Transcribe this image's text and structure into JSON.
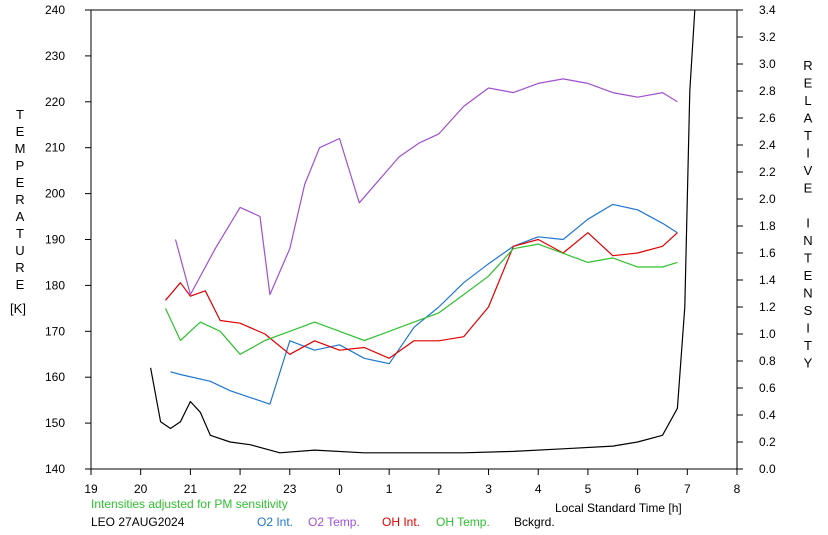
{
  "chart_data": {
    "type": "line",
    "left_axis": {
      "label": "TEMPERATURE",
      "unit": "[K]",
      "ylim": [
        140,
        240
      ],
      "ticks": [
        "140",
        "150",
        "160",
        "170",
        "180",
        "190",
        "200",
        "210",
        "220",
        "230",
        "240"
      ]
    },
    "right_axis": {
      "label": "RELATIVE INTENSITY",
      "ylim": [
        0.0,
        3.4
      ],
      "ticks": [
        "0.0",
        "0.2",
        "0.4",
        "0.6",
        "0.8",
        "1.0",
        "1.2",
        "1.4",
        "1.6",
        "1.8",
        "2.0",
        "2.2",
        "2.4",
        "2.6",
        "2.8",
        "3.0",
        "3.2",
        "3.4"
      ]
    },
    "x_axis": {
      "label": "Local Standard Time [h]",
      "xlim": [
        19,
        32
      ],
      "ticks": [
        "19",
        "20",
        "21",
        "22",
        "23",
        "0",
        "1",
        "2",
        "3",
        "4",
        "5",
        "6",
        "7",
        "8"
      ]
    },
    "note": "Intensities adjusted for PM sensitivity",
    "station_date": "LEO 27AUG2024",
    "legend": [
      "O2 Int.",
      "O2 Temp.",
      "OH Int.",
      "OH Temp.",
      "Bckgrd."
    ],
    "colors": {
      "o2_int": "#1f77d0",
      "o2_temp": "#a050d0",
      "oh_int": "#e00000",
      "oh_temp": "#30c030",
      "background": "#000000",
      "note": "#30c030"
    },
    "series": [
      {
        "name": "O2 Int.",
        "axis": "right",
        "x": [
          20.6,
          20.8,
          21.4,
          21.8,
          22.2,
          22.6,
          23.0,
          23.5,
          24.0,
          24.5,
          25.0,
          25.5,
          26.0,
          26.5,
          27.0,
          27.5,
          28.0,
          28.5,
          29.0,
          29.5,
          30.0,
          30.5,
          30.8
        ],
        "values": [
          0.72,
          0.7,
          0.65,
          0.58,
          0.53,
          0.48,
          0.95,
          0.88,
          0.92,
          0.82,
          0.78,
          1.05,
          1.2,
          1.38,
          1.52,
          1.65,
          1.72,
          1.7,
          1.85,
          1.96,
          1.92,
          1.82,
          1.75
        ]
      },
      {
        "name": "O2 Temp.",
        "axis": "left",
        "x": [
          20.7,
          21.0,
          21.5,
          22.0,
          22.4,
          22.6,
          23.0,
          23.3,
          23.6,
          24.0,
          24.4,
          24.8,
          25.2,
          25.6,
          26.0,
          26.5,
          27.0,
          27.5,
          28.0,
          28.5,
          29.0,
          29.5,
          30.0,
          30.5,
          30.8
        ],
        "values": [
          190,
          178,
          188,
          197,
          195,
          178,
          188,
          202,
          210,
          212,
          198,
          203,
          208,
          211,
          213,
          219,
          223,
          222,
          224,
          225,
          224,
          222,
          221,
          222,
          220
        ]
      },
      {
        "name": "OH Int.",
        "axis": "right",
        "x": [
          20.5,
          20.8,
          21.0,
          21.3,
          21.6,
          22.0,
          22.5,
          23.0,
          23.5,
          24.0,
          24.5,
          25.0,
          25.5,
          26.0,
          26.5,
          27.0,
          27.5,
          28.0,
          28.5,
          29.0,
          29.5,
          30.0,
          30.5,
          30.8
        ],
        "values": [
          1.25,
          1.38,
          1.28,
          1.32,
          1.1,
          1.08,
          1.0,
          0.85,
          0.95,
          0.88,
          0.9,
          0.82,
          0.95,
          0.95,
          0.98,
          1.2,
          1.65,
          1.7,
          1.6,
          1.75,
          1.58,
          1.6,
          1.65,
          1.75
        ]
      },
      {
        "name": "OH Temp.",
        "axis": "left",
        "x": [
          20.5,
          20.8,
          21.2,
          21.6,
          22.0,
          22.5,
          23.0,
          23.5,
          24.0,
          24.5,
          25.0,
          25.5,
          26.0,
          26.5,
          27.0,
          27.5,
          28.0,
          28.5,
          29.0,
          29.5,
          30.0,
          30.5,
          30.8
        ],
        "values": [
          175,
          168,
          172,
          170,
          165,
          168,
          170,
          172,
          170,
          168,
          170,
          172,
          174,
          178,
          182,
          188,
          189,
          187,
          185,
          186,
          184,
          184,
          185
        ]
      },
      {
        "name": "Bckgrd.",
        "axis": "right",
        "x": [
          20.2,
          20.4,
          20.6,
          20.8,
          21.0,
          21.2,
          21.4,
          21.8,
          22.2,
          22.8,
          23.5,
          24.5,
          25.5,
          26.5,
          27.5,
          28.5,
          29.5,
          30.0,
          30.5,
          30.8,
          30.95,
          31.05,
          31.15
        ],
        "values": [
          0.75,
          0.35,
          0.3,
          0.35,
          0.5,
          0.42,
          0.25,
          0.2,
          0.18,
          0.12,
          0.14,
          0.12,
          0.12,
          0.12,
          0.13,
          0.15,
          0.17,
          0.2,
          0.25,
          0.45,
          1.2,
          2.8,
          3.4
        ]
      }
    ]
  }
}
